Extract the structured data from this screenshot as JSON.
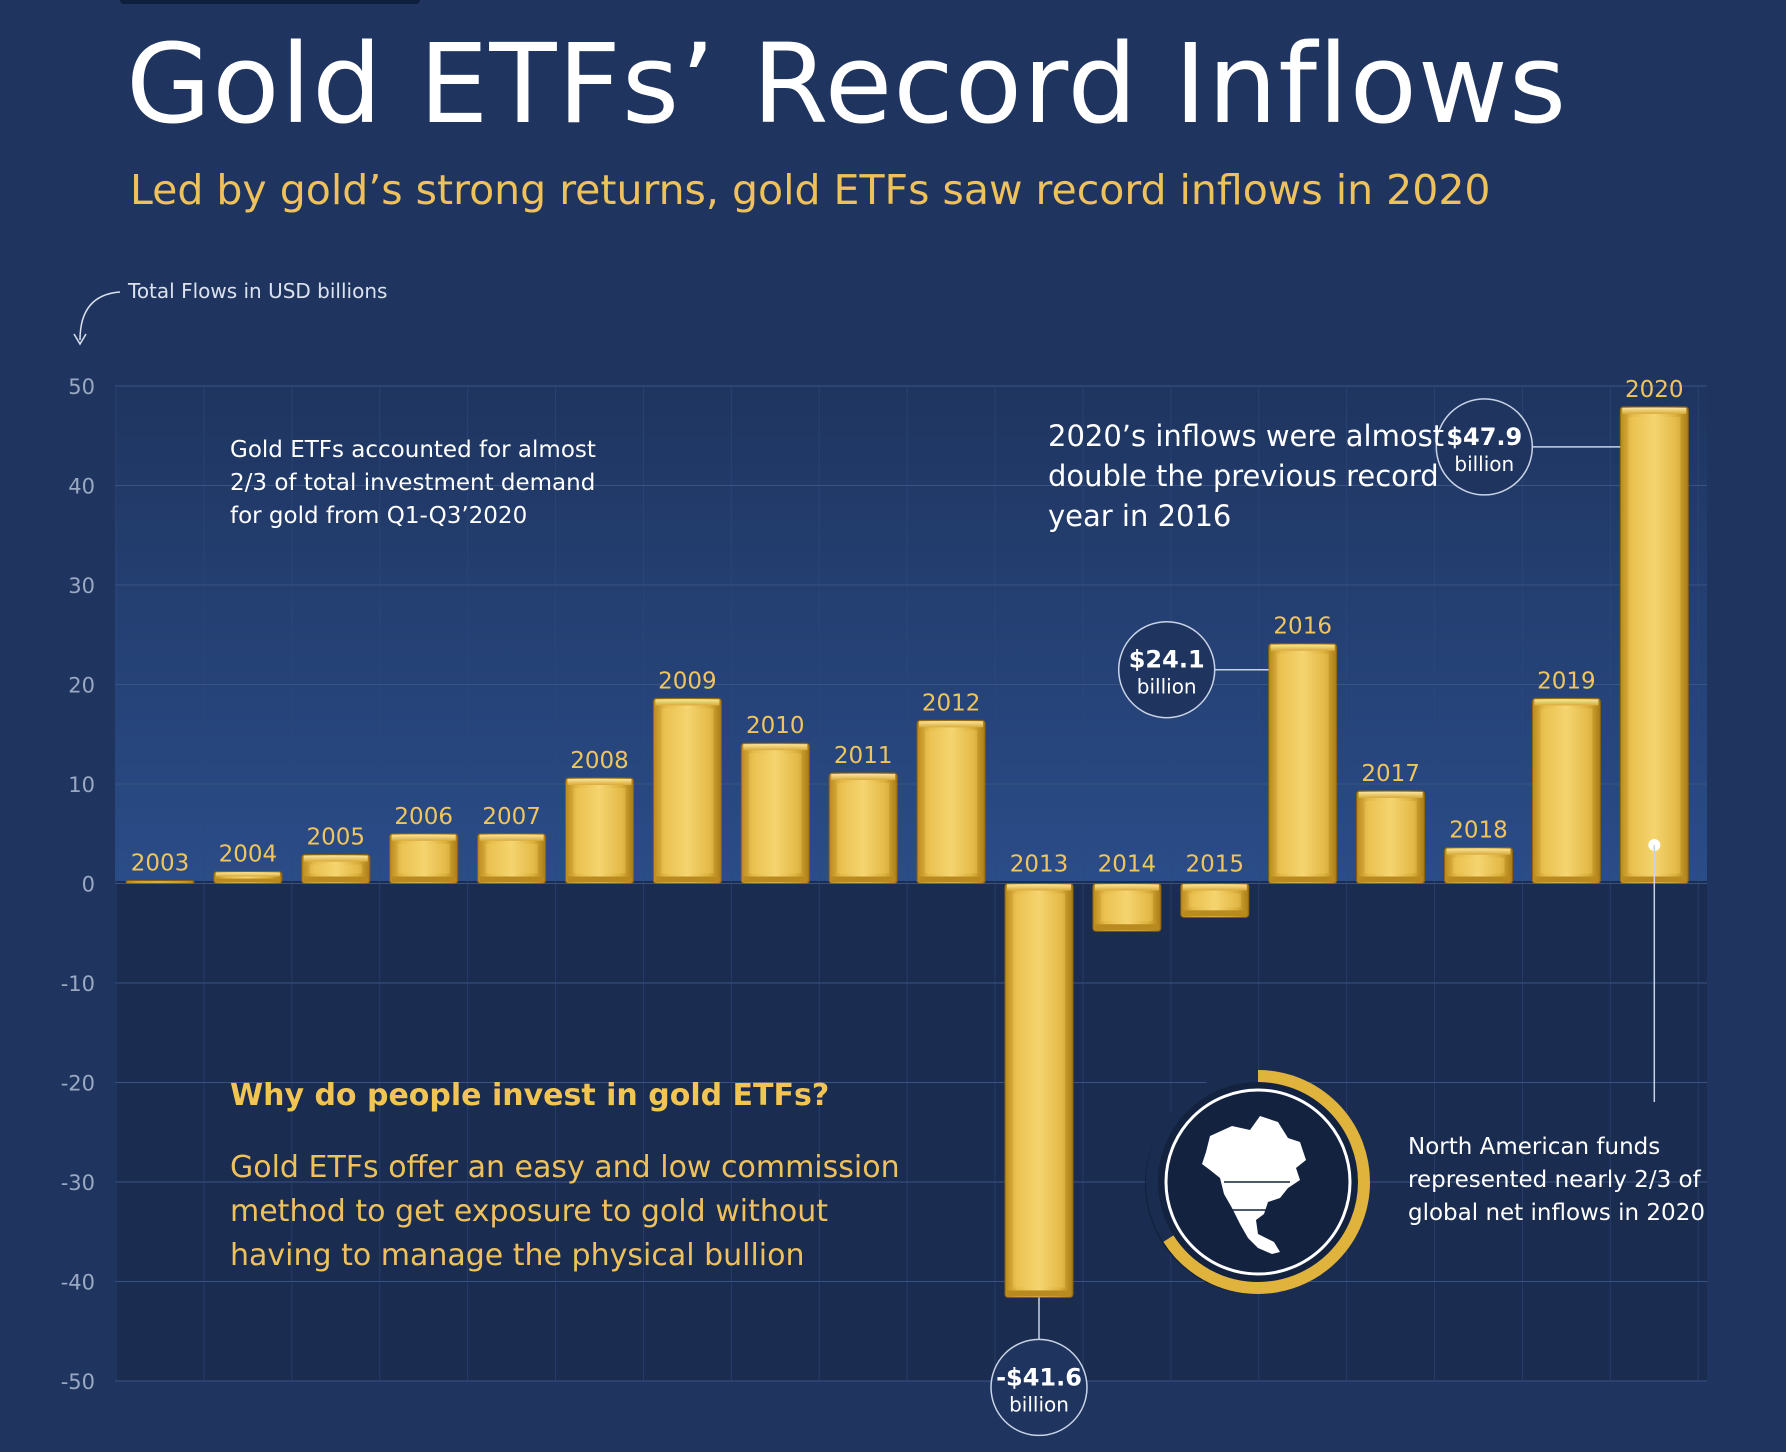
{
  "title": "Gold ETFs’ Record Inflows",
  "subtitle": "Led by gold’s strong returns, gold ETFs saw record inflows in 2020",
  "axis_label": "Total Flows in USD billions",
  "colors": {
    "background": "#1f3560",
    "plot_positive": "#24457f",
    "plot_negative": "#1a2c50",
    "gold": "#e0b43c",
    "accent_text": "#efc15a"
  },
  "chart_data": {
    "type": "bar",
    "categories": [
      "2003",
      "2004",
      "2005",
      "2006",
      "2007",
      "2008",
      "2009",
      "2010",
      "2011",
      "2012",
      "2013",
      "2014",
      "2015",
      "2016",
      "2017",
      "2018",
      "2019",
      "2020"
    ],
    "values": [
      0.3,
      1.2,
      2.9,
      5.0,
      5.0,
      10.6,
      18.6,
      14.1,
      11.1,
      16.4,
      -41.6,
      -4.8,
      -3.4,
      24.1,
      9.3,
      3.6,
      18.6,
      47.9
    ],
    "ylim": [
      -50,
      50
    ],
    "yticks": [
      50,
      40,
      30,
      20,
      10,
      0,
      -10,
      -20,
      -30,
      -40,
      -50
    ],
    "ylabel": "Total Flows in USD billions",
    "grid": true,
    "callouts": [
      {
        "category": "2016",
        "value_text": "$24.1",
        "unit_text": "billion"
      },
      {
        "category": "2020",
        "value_text": "$47.9",
        "unit_text": "billion"
      },
      {
        "category": "2013",
        "value_text": "-$41.6",
        "unit_text": "billion"
      }
    ]
  },
  "notes": {
    "share": "Gold ETFs accounted for almost 2/3 of total investment demand for gold from Q1-Q3’2020",
    "record": "2020’s inflows were almost double the previous record year in 2016",
    "question_title": "Why do people invest in gold ETFs?",
    "question_body": "Gold ETFs offer an easy and low commission method to get exposure to gold without having to manage the physical bullion",
    "north_america": "North American funds represented nearly 2/3 of global net inflows in 2020",
    "north_america_share": 0.66
  }
}
